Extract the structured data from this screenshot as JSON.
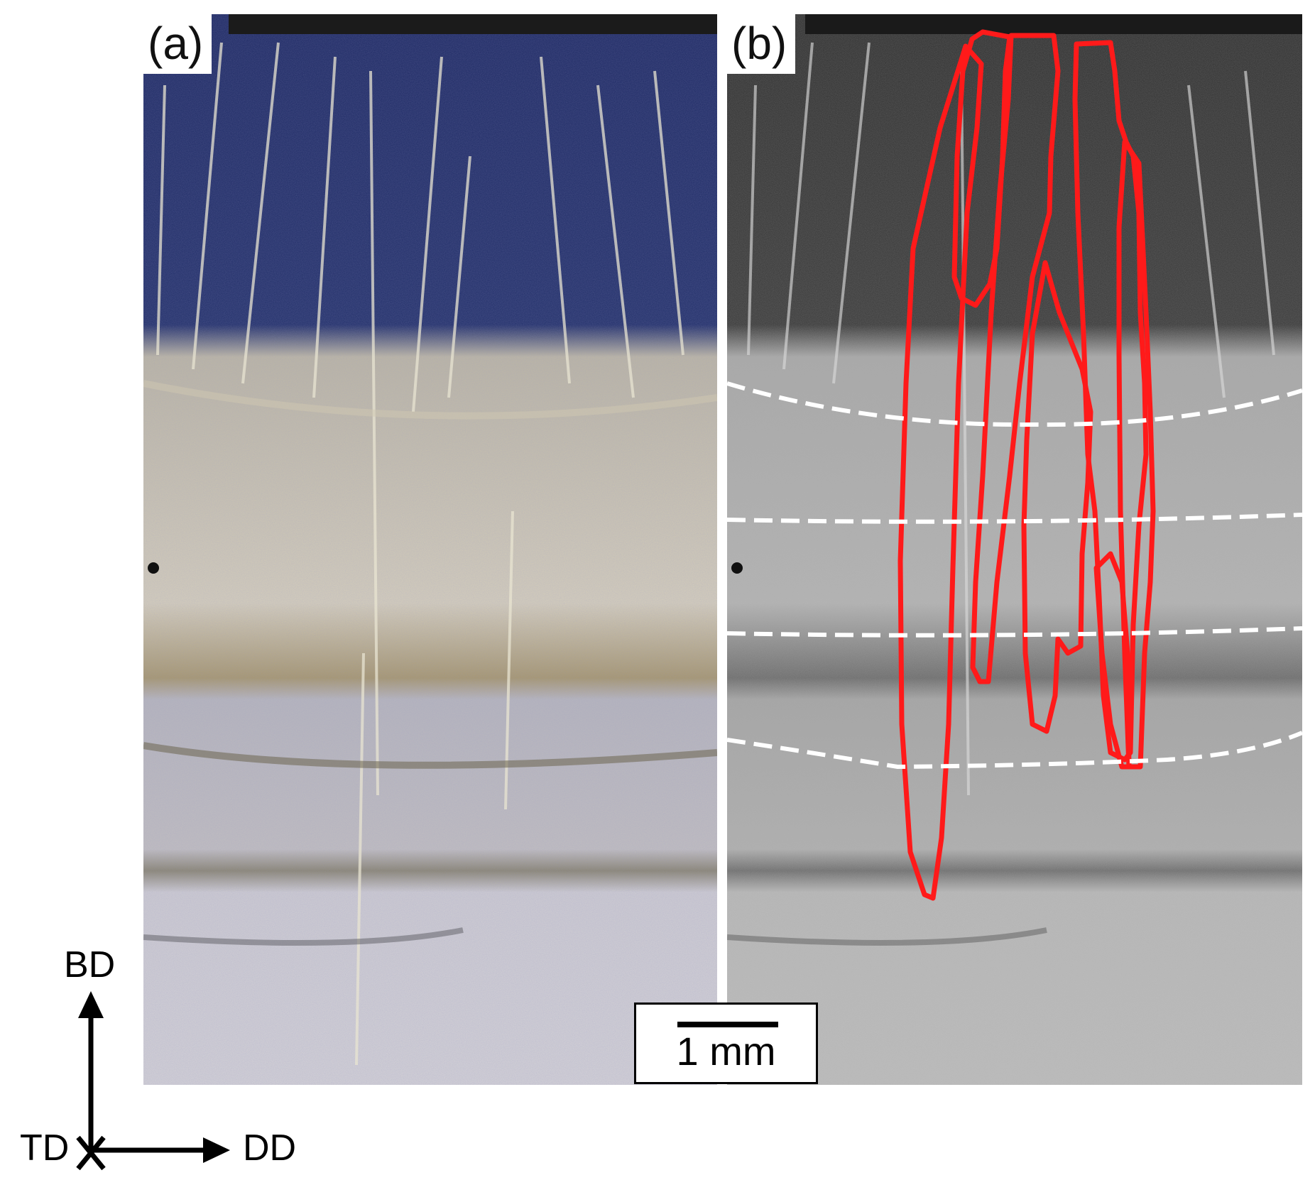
{
  "panels": [
    {
      "label": "(a)"
    },
    {
      "label": "(b)"
    }
  ],
  "scale_bar": {
    "text": "1 mm"
  },
  "axes": {
    "up": "BD",
    "origin": "TD",
    "right": "DD"
  },
  "colors": {
    "panel_a_top": "#1f2a63",
    "panel_a_bottom": "#cfc8b4",
    "panel_b_top": "#333333",
    "panel_b_bottom": "#b4b4b4",
    "outline": "#ff1a1a",
    "boundary": "#ffffff"
  }
}
